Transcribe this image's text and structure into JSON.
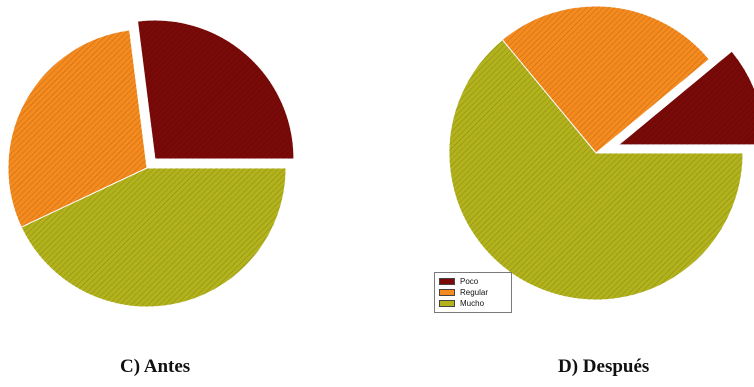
{
  "chart_data": [
    {
      "type": "pie",
      "title": "C)  Antes",
      "categories": [
        "Poco",
        "Regular",
        "Mucho"
      ],
      "values": [
        27,
        30,
        43
      ],
      "colors": [
        "#7a0a08",
        "#f58a1e",
        "#b2b21c"
      ],
      "exploded": [
        "Poco"
      ],
      "hatched": true
    },
    {
      "type": "pie",
      "title": "D)  Después",
      "categories": [
        "Poco",
        "Regular",
        "Mucho"
      ],
      "values": [
        11,
        25,
        64
      ],
      "colors": [
        "#7a0a08",
        "#f58a1e",
        "#b2b21c"
      ],
      "exploded": [
        "Poco"
      ],
      "hatched": true,
      "legend": {
        "position": "bottom-left",
        "entries": [
          "Poco",
          "Regular",
          "Mucho"
        ]
      }
    }
  ]
}
